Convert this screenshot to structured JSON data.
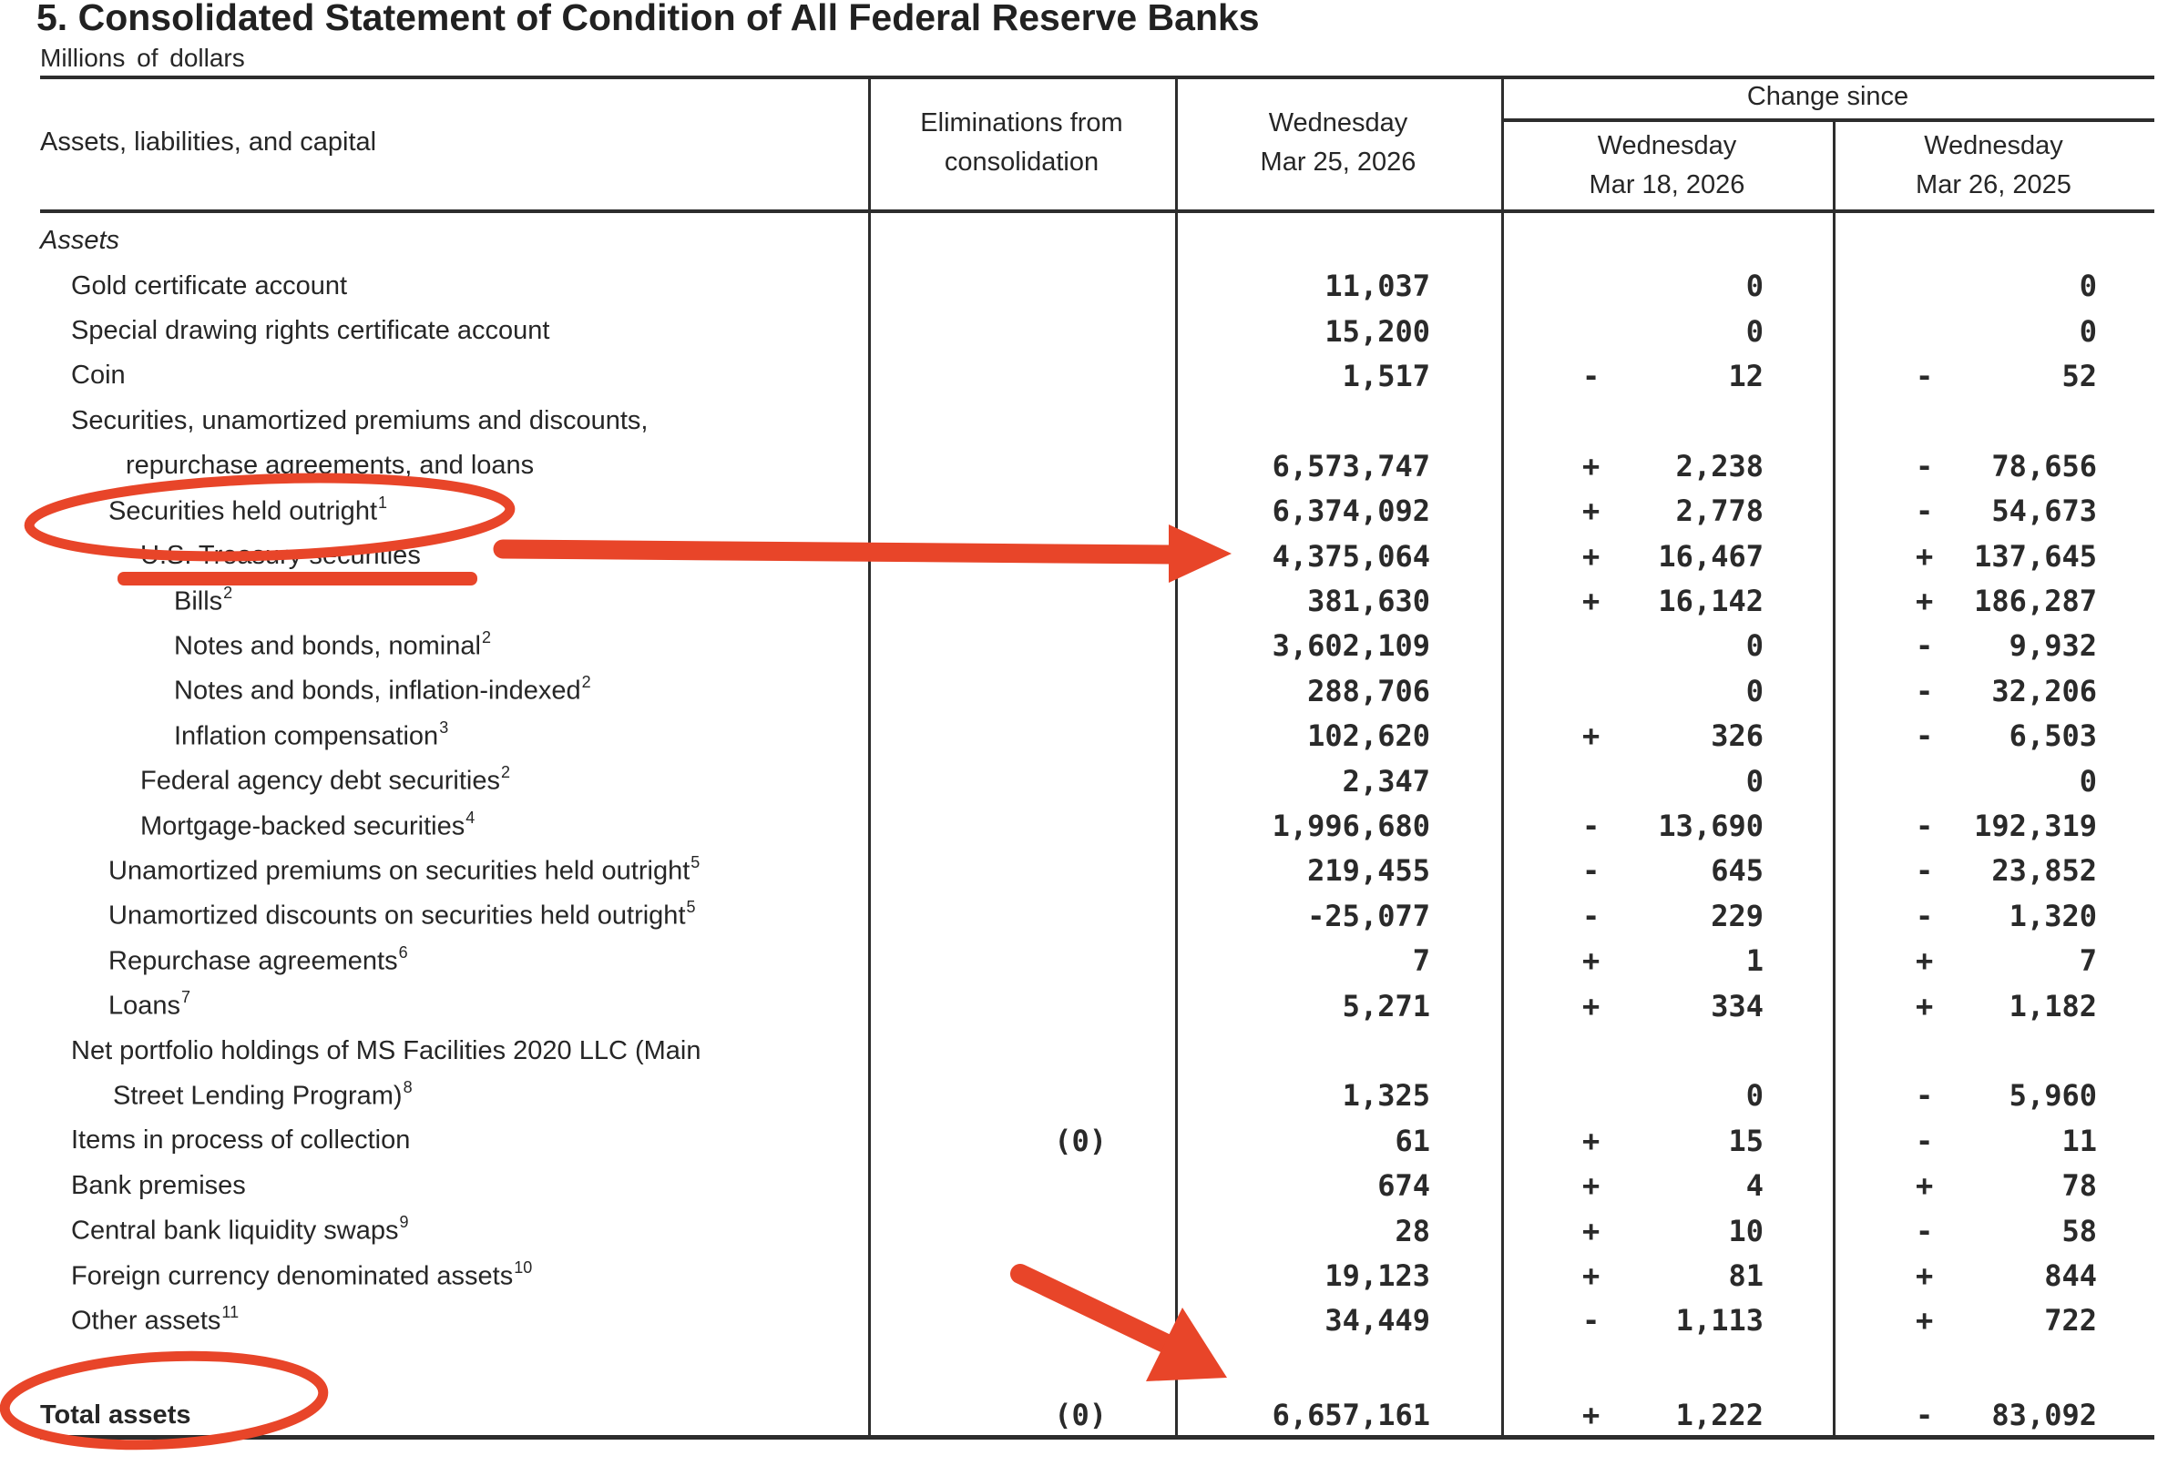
{
  "page": {
    "title": "5. Consolidated Statement of Condition of All Federal Reserve Banks",
    "subtitle": "Millions of dollars"
  },
  "table": {
    "header": {
      "stub_label": "Assets, liabilities, and capital",
      "eliminations": {
        "line1": "Eliminations from",
        "line2": "consolidation"
      },
      "current_week": {
        "line1": "Wednesday",
        "line2": "Mar 25, 2026"
      },
      "change_since_label": "Change since",
      "week_ago": {
        "line1": "Wednesday",
        "line2": "Mar 18, 2026"
      },
      "year_ago": {
        "line1": "Wednesday",
        "line2": "Mar 26, 2025"
      }
    },
    "rows": [
      {
        "label": "Assets",
        "level": "section"
      },
      {
        "label": "Gold certificate account",
        "level": "l1",
        "current": "11,037",
        "chg_week": "0",
        "chg_year": "0"
      },
      {
        "label": "Special drawing rights certificate account",
        "level": "l1",
        "current": "15,200",
        "chg_week": "0",
        "chg_year": "0"
      },
      {
        "label": "Coin",
        "level": "l1",
        "current": "1,517",
        "chg_week_sign": "-",
        "chg_week": "12",
        "chg_year_sign": "-",
        "chg_year": "52"
      },
      {
        "label": "Securities, unamortized premiums and discounts,",
        "level": "l1"
      },
      {
        "label": "repurchase agreements, and loans",
        "level": "cont-a",
        "current": "6,573,747",
        "chg_week_sign": "+",
        "chg_week": "2,238",
        "chg_year_sign": "-",
        "chg_year": "78,656"
      },
      {
        "label": "Securities held outright",
        "sup": "1",
        "level": "l2",
        "current": "6,374,092",
        "chg_week_sign": "+",
        "chg_week": "2,778",
        "chg_year_sign": "-",
        "chg_year": "54,673"
      },
      {
        "label": "U.S. Treasury securities",
        "level": "l3",
        "current": "4,375,064",
        "chg_week_sign": "+",
        "chg_week": "16,467",
        "chg_year_sign": "+",
        "chg_year": "137,645"
      },
      {
        "label": "Bills",
        "sup": "2",
        "level": "l4",
        "current": "381,630",
        "chg_week_sign": "+",
        "chg_week": "16,142",
        "chg_year_sign": "+",
        "chg_year": "186,287"
      },
      {
        "label": "Notes and bonds, nominal",
        "sup": "2",
        "level": "l4",
        "current": "3,602,109",
        "chg_week": "0",
        "chg_year_sign": "-",
        "chg_year": "9,932"
      },
      {
        "label": "Notes and bonds, inflation-indexed",
        "sup": "2",
        "level": "l4",
        "current": "288,706",
        "chg_week": "0",
        "chg_year_sign": "-",
        "chg_year": "32,206"
      },
      {
        "label": "Inflation compensation",
        "sup": "3",
        "level": "l4",
        "current": "102,620",
        "chg_week_sign": "+",
        "chg_week": "326",
        "chg_year_sign": "-",
        "chg_year": "6,503"
      },
      {
        "label": "Federal agency debt securities",
        "sup": "2",
        "level": "l3",
        "current": "2,347",
        "chg_week": "0",
        "chg_year": "0"
      },
      {
        "label": "Mortgage-backed securities",
        "sup": "4",
        "level": "l3",
        "current": "1,996,680",
        "chg_week_sign": "-",
        "chg_week": "13,690",
        "chg_year_sign": "-",
        "chg_year": "192,319"
      },
      {
        "label": "Unamortized premiums on securities held outright",
        "sup": "5",
        "level": "l2",
        "current": "219,455",
        "chg_week_sign": "-",
        "chg_week": "645",
        "chg_year_sign": "-",
        "chg_year": "23,852"
      },
      {
        "label": "Unamortized discounts on securities held outright",
        "sup": "5",
        "level": "l2",
        "current": "-25,077",
        "chg_week_sign": "-",
        "chg_week": "229",
        "chg_year_sign": "-",
        "chg_year": "1,320"
      },
      {
        "label": "Repurchase agreements",
        "sup": "6",
        "level": "l2",
        "current": "7",
        "chg_week_sign": "+",
        "chg_week": "1",
        "chg_year_sign": "+",
        "chg_year": "7"
      },
      {
        "label": "Loans",
        "sup": "7",
        "level": "l2",
        "current": "5,271",
        "chg_week_sign": "+",
        "chg_week": "334",
        "chg_year_sign": "+",
        "chg_year": "1,182"
      },
      {
        "label": "Net portfolio holdings of MS Facilities 2020 LLC (Main",
        "level": "l1"
      },
      {
        "label": "Street Lending Program)",
        "sup": "8",
        "level": "cont-b",
        "current": "1,325",
        "chg_week": "0",
        "chg_year_sign": "-",
        "chg_year": "5,960"
      },
      {
        "label": "Items in process of collection",
        "level": "l1",
        "elim": "(0)",
        "current": "61",
        "chg_week_sign": "+",
        "chg_week": "15",
        "chg_year_sign": "-",
        "chg_year": "11"
      },
      {
        "label": "Bank premises",
        "level": "l1",
        "current": "674",
        "chg_week_sign": "+",
        "chg_week": "4",
        "chg_year_sign": "+",
        "chg_year": "78"
      },
      {
        "label": "Central bank liquidity swaps",
        "sup": "9",
        "level": "l1",
        "current": "28",
        "chg_week_sign": "+",
        "chg_week": "10",
        "chg_year_sign": "-",
        "chg_year": "58"
      },
      {
        "label": "Foreign currency denominated assets",
        "sup": "10",
        "level": "l1",
        "current": "19,123",
        "chg_week_sign": "+",
        "chg_week": "81",
        "chg_year_sign": "+",
        "chg_year": "844"
      },
      {
        "label": "Other assets",
        "sup": "11",
        "level": "l1",
        "current": "34,449",
        "chg_week_sign": "-",
        "chg_week": "1,113",
        "chg_year_sign": "+",
        "chg_year": "722"
      },
      {
        "spacer": true
      },
      {
        "label": "Total assets",
        "level": "total",
        "elim": "(0)",
        "current": "6,657,161",
        "chg_week_sign": "+",
        "chg_week": "1,222",
        "chg_year_sign": "-",
        "chg_year": "83,092"
      }
    ]
  },
  "annotations": {
    "color": "#e84529",
    "items": [
      {
        "type": "ellipse",
        "target": "Securities held outright"
      },
      {
        "type": "underline",
        "target": "U.S. Treasury securities"
      },
      {
        "type": "arrow",
        "target": "4,375,064"
      },
      {
        "type": "ellipse",
        "target": "Total assets"
      },
      {
        "type": "arrow",
        "target": "6,657,161"
      }
    ]
  }
}
